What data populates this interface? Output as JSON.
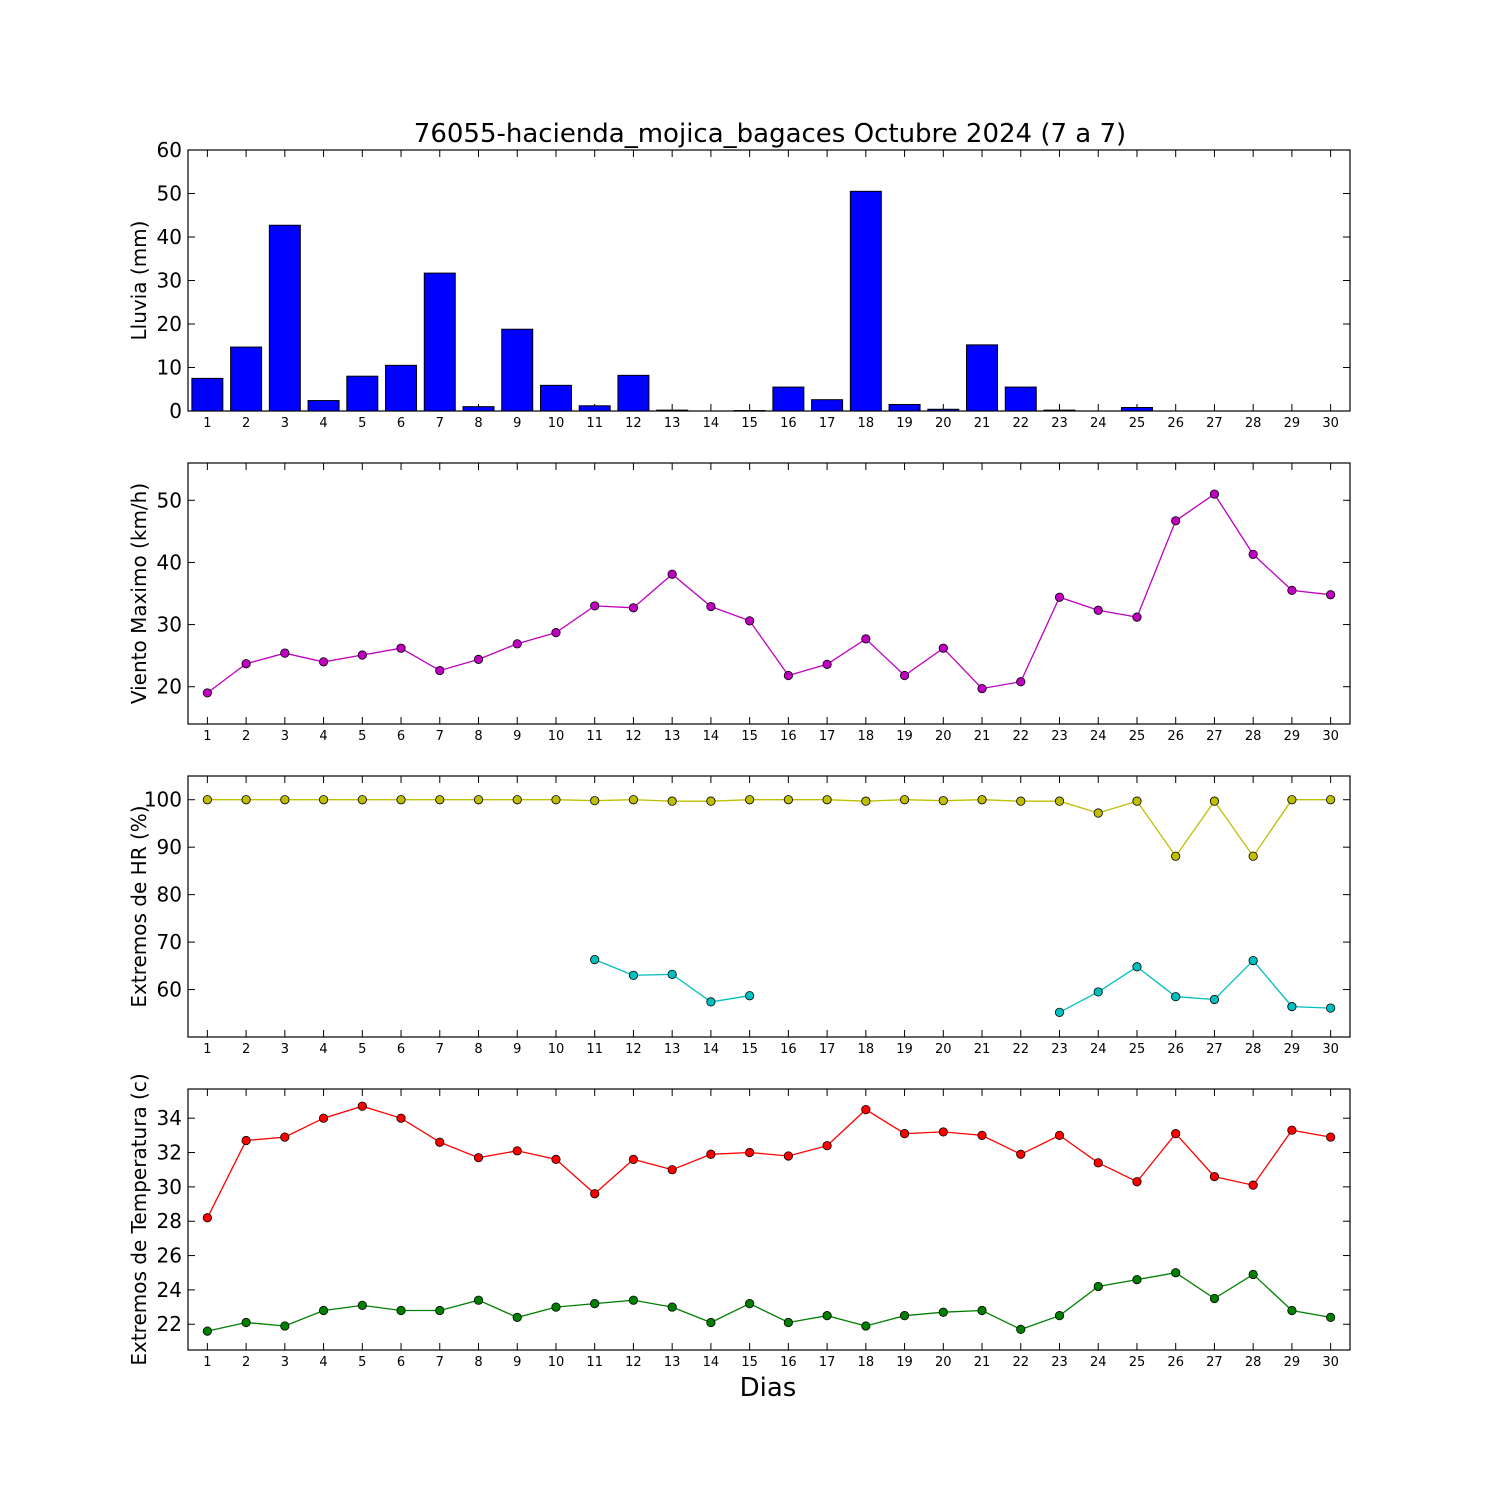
{
  "title": "76055-hacienda_mojica_bagaces Octubre 2024  (7 a 7)",
  "xlabel": "Dias",
  "chart_data": [
    {
      "type": "bar",
      "ylabel": "Lluvia (mm)",
      "ylim": [
        0,
        60
      ],
      "yticks": [
        0,
        10,
        20,
        30,
        40,
        50,
        60
      ],
      "x": [
        1,
        2,
        3,
        4,
        5,
        6,
        7,
        8,
        9,
        10,
        11,
        12,
        13,
        14,
        15,
        16,
        17,
        18,
        19,
        20,
        21,
        22,
        23,
        24,
        25,
        26,
        27,
        28,
        29,
        30
      ],
      "xlim": [
        0.5,
        30.5
      ],
      "series": [
        {
          "color": "#0000ff",
          "values": [
            7.5,
            14.7,
            42.7,
            2.4,
            8.0,
            10.5,
            31.7,
            1.0,
            18.8,
            5.9,
            1.2,
            8.2,
            0.2,
            0,
            0.1,
            5.5,
            2.6,
            50.5,
            1.5,
            0.4,
            15.2,
            5.5,
            0.2,
            0,
            0.8,
            0,
            0,
            0,
            0,
            0
          ]
        }
      ]
    },
    {
      "type": "line",
      "ylabel": "Viento Maximo (km/h)",
      "ylim": [
        14,
        56
      ],
      "yticks": [
        20,
        30,
        40,
        50
      ],
      "x": [
        1,
        2,
        3,
        4,
        5,
        6,
        7,
        8,
        9,
        10,
        11,
        12,
        13,
        14,
        15,
        16,
        17,
        18,
        19,
        20,
        21,
        22,
        23,
        24,
        25,
        26,
        27,
        28,
        29,
        30
      ],
      "xlim": [
        0.5,
        30.5
      ],
      "series": [
        {
          "color": "#bf00bf",
          "values": [
            19.0,
            23.7,
            25.4,
            24.0,
            25.1,
            26.2,
            22.6,
            24.4,
            26.9,
            28.7,
            33.0,
            32.7,
            38.1,
            32.9,
            30.6,
            21.8,
            23.6,
            27.7,
            21.8,
            26.2,
            19.7,
            20.8,
            34.4,
            32.3,
            31.2,
            46.7,
            51.0,
            41.3,
            35.5,
            34.8
          ]
        }
      ]
    },
    {
      "type": "line",
      "ylabel": "Extremos de HR (%)",
      "ylim": [
        50,
        105
      ],
      "yticks": [
        60,
        70,
        80,
        90,
        100
      ],
      "x": [
        1,
        2,
        3,
        4,
        5,
        6,
        7,
        8,
        9,
        10,
        11,
        12,
        13,
        14,
        15,
        16,
        17,
        18,
        19,
        20,
        21,
        22,
        23,
        24,
        25,
        26,
        27,
        28,
        29,
        30
      ],
      "xlim": [
        0.5,
        30.5
      ],
      "series": [
        {
          "color": "#bfbf00",
          "values": [
            100,
            100,
            100,
            100,
            100,
            100,
            100,
            100,
            100,
            100,
            99.8,
            100,
            99.7,
            99.7,
            100,
            100,
            100,
            99.7,
            100,
            99.8,
            100,
            99.7,
            99.7,
            97.2,
            99.7,
            88.1,
            99.7,
            88.1,
            100,
            100
          ]
        },
        {
          "color": "#00bfbf",
          "values": [
            null,
            null,
            null,
            null,
            null,
            null,
            null,
            null,
            null,
            null,
            66.3,
            63.0,
            63.2,
            57.4,
            58.7,
            null,
            null,
            null,
            null,
            null,
            null,
            null,
            55.2,
            59.5,
            64.8,
            58.5,
            57.9,
            66.1,
            56.4,
            56.1
          ]
        }
      ]
    },
    {
      "type": "line",
      "ylabel": "Extremos de Temperatura (c)",
      "ylim": [
        20.5,
        35.7
      ],
      "yticks": [
        22,
        24,
        26,
        28,
        30,
        32,
        34
      ],
      "x": [
        1,
        2,
        3,
        4,
        5,
        6,
        7,
        8,
        9,
        10,
        11,
        12,
        13,
        14,
        15,
        16,
        17,
        18,
        19,
        20,
        21,
        22,
        23,
        24,
        25,
        26,
        27,
        28,
        29,
        30
      ],
      "xlim": [
        0.5,
        30.5
      ],
      "series": [
        {
          "color": "#ff0000",
          "values": [
            28.2,
            32.7,
            32.9,
            34.0,
            34.7,
            34.0,
            32.6,
            31.7,
            32.1,
            31.6,
            29.6,
            31.6,
            31.0,
            31.9,
            32.0,
            31.8,
            32.4,
            34.5,
            33.1,
            33.2,
            33.0,
            31.9,
            33.0,
            31.4,
            30.3,
            33.1,
            30.6,
            30.1,
            33.3,
            32.9
          ]
        },
        {
          "color": "#008000",
          "values": [
            21.6,
            22.1,
            21.9,
            22.8,
            23.1,
            22.8,
            22.8,
            23.4,
            22.4,
            23.0,
            23.2,
            23.4,
            23.0,
            22.1,
            23.2,
            22.1,
            22.5,
            21.9,
            22.5,
            22.7,
            22.8,
            21.7,
            22.5,
            24.2,
            24.6,
            25.0,
            23.5,
            24.9,
            22.8,
            22.4
          ]
        }
      ]
    }
  ]
}
